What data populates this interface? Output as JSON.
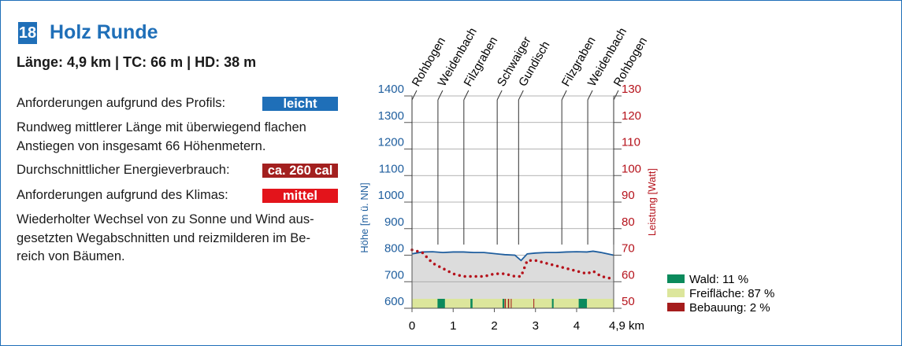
{
  "header": {
    "number": "18",
    "title": "Holz Runde",
    "stats": "Länge: 4,9 km | TC: 66 m | HD: 38 m"
  },
  "info": [
    {
      "label": "Anforderungen aufgrund des Profils:",
      "badge": "leicht",
      "badge_color": "#1f6fb8"
    },
    {
      "lines": [
        "Rundweg mittlerer Länge mit überwiegend flachen",
        "Anstiegen von insgesamt 66 Höhenmetern."
      ]
    },
    {
      "label": "Durchschnittlicher Energieverbrauch:",
      "badge": "ca. 260 cal",
      "badge_color": "#a3201f"
    },
    {
      "label": "Anforderungen aufgrund des Klimas:",
      "badge": "mittel",
      "badge_color": "#e3141b"
    },
    {
      "lines": [
        "Wiederholter Wechsel von zu Sonne und Wind aus-",
        "gesetzten Wegabschnitten und reizmilderen im Be-",
        "reich von Bäumen."
      ]
    }
  ],
  "chart_data": {
    "type": "line",
    "x": [
      0,
      0.25,
      0.5,
      0.75,
      1,
      1.25,
      1.5,
      1.75,
      2,
      2.25,
      2.5,
      2.65,
      2.8,
      3,
      3.25,
      3.5,
      3.75,
      4,
      4.25,
      4.4,
      4.6,
      4.9
    ],
    "series": [
      {
        "color": "#1f5e9e",
        "values": [
          805,
          812,
          813,
          810,
          812,
          812,
          810,
          810,
          806,
          802,
          800,
          780,
          805,
          808,
          810,
          810,
          812,
          813,
          812,
          815,
          810,
          800
        ]
      },
      {
        "color": "#b5121b",
        "axis": "y2",
        "values": [
          72,
          71,
          67,
          65,
          63,
          62,
          62,
          62,
          63,
          63,
          62,
          62,
          68,
          68,
          67,
          66,
          65,
          64,
          63,
          64,
          62,
          61
        ]
      }
    ],
    "xlim": [
      0,
      4.9
    ],
    "xticks": [
      0,
      1,
      2,
      3,
      4,
      {
        "value": 4.9,
        "label": "4,9 km"
      }
    ],
    "ylim": [
      600,
      1400
    ],
    "yticks": [
      600,
      700,
      800,
      900,
      1000,
      1100,
      1200,
      1300,
      1400
    ],
    "y2lim": [
      50,
      130
    ],
    "y2ticks": [
      50,
      60,
      70,
      80,
      90,
      100,
      110,
      120,
      130
    ],
    "ylabel": "Höhe [m ü. NN]",
    "y2label": "Leistung [Watt]",
    "waypoints": {
      "labels": [
        "Rohbogen",
        "Weidenbach",
        "Filzgraben",
        "Schwaiger",
        "Gundisch",
        "Filzgraben",
        "Weidenbach",
        "Rohbogen"
      ],
      "x": [
        0,
        0.63,
        1.26,
        2.07,
        2.59,
        3.64,
        4.27,
        4.9
      ]
    },
    "landuse": [
      {
        "name": "Wald: 11 %",
        "color": "#0b8a5c",
        "spans": [
          [
            0.62,
            0.8
          ],
          [
            1.42,
            1.47
          ],
          [
            2.2,
            2.24
          ],
          [
            3.4,
            3.44
          ],
          [
            4.05,
            4.25
          ]
        ]
      },
      {
        "name": "Freifläche: 87 %",
        "color": "#dce69c",
        "spans": [
          [
            0,
            4.9
          ]
        ]
      },
      {
        "name": "Bebauung: 2 %",
        "color": "#a51c1c",
        "spans": [
          [
            2.25,
            2.28
          ],
          [
            2.33,
            2.36
          ],
          [
            2.4,
            2.42
          ],
          [
            2.95,
            2.97
          ]
        ]
      }
    ]
  }
}
